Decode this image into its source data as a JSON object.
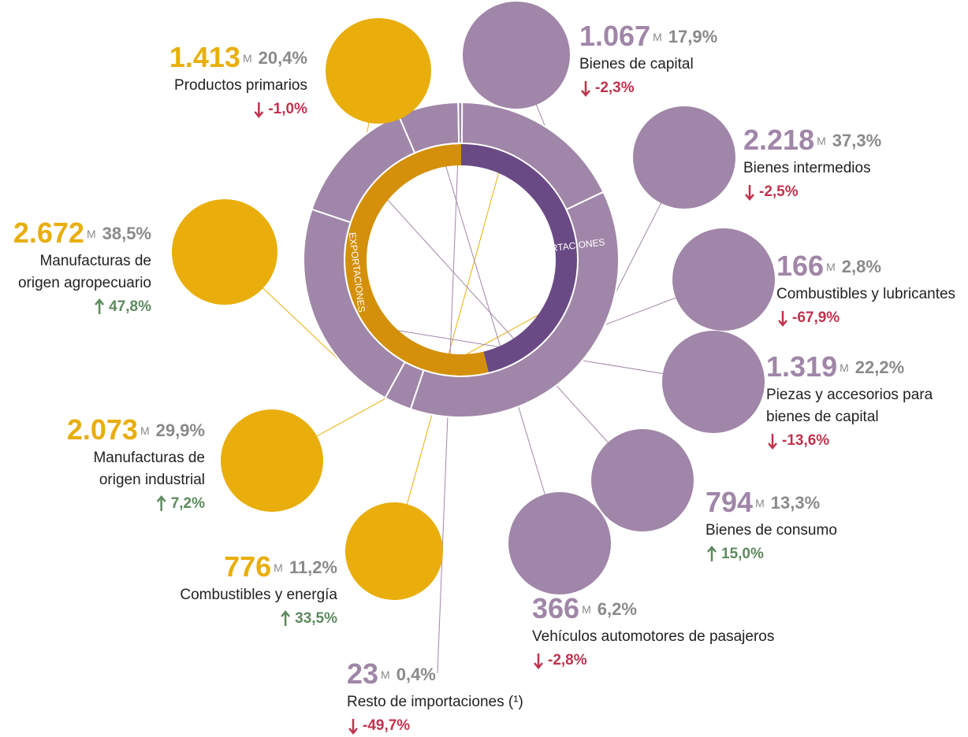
{
  "chart_data": {
    "type": "donut",
    "unit": "M",
    "colors": {
      "exports": "#e9ae0c",
      "exports_inner": "#d4900a",
      "imports": "#a086a8",
      "imports_inner": "#6a4a85",
      "down": "#c0334d",
      "up": "#5d8a5e"
    },
    "groups": [
      {
        "name": "EXPORTACIONES",
        "items": [
          {
            "name": [
              "Productos primarios"
            ],
            "value": 1413,
            "value_label": "1.413",
            "share": 20.4,
            "share_label": "20,4%",
            "change": -1.0,
            "change_label": "-1,0%"
          },
          {
            "name": [
              "Manufacturas de",
              "origen agropecuario"
            ],
            "value": 2672,
            "value_label": "2.672",
            "share": 38.5,
            "share_label": "38,5%",
            "change": 47.8,
            "change_label": "47,8%"
          },
          {
            "name": [
              "Manufacturas de",
              "origen industrial"
            ],
            "value": 2073,
            "value_label": "2.073",
            "share": 29.9,
            "share_label": "29,9%",
            "change": 7.2,
            "change_label": "7,2%"
          },
          {
            "name": [
              "Combustibles y energía"
            ],
            "value": 776,
            "value_label": "776",
            "share": 11.2,
            "share_label": "11,2%",
            "change": 33.5,
            "change_label": "33,5%"
          }
        ]
      },
      {
        "name": "IMPORTACIONES",
        "items": [
          {
            "name": [
              "Bienes de capital"
            ],
            "value": 1067,
            "value_label": "1.067",
            "share": 17.9,
            "share_label": "17,9%",
            "change": -2.3,
            "change_label": "-2,3%"
          },
          {
            "name": [
              "Bienes intermedios"
            ],
            "value": 2218,
            "value_label": "2.218",
            "share": 37.3,
            "share_label": "37,3%",
            "change": -2.5,
            "change_label": "-2,5%"
          },
          {
            "name": [
              "Combustibles y lubricantes"
            ],
            "value": 166,
            "value_label": "166",
            "share": 2.8,
            "share_label": "2,8%",
            "change": -67.9,
            "change_label": "-67,9%"
          },
          {
            "name": [
              "Piezas y accesorios para",
              "bienes de capital"
            ],
            "value": 1319,
            "value_label": "1.319",
            "share": 22.2,
            "share_label": "22,2%",
            "change": -13.6,
            "change_label": "-13,6%"
          },
          {
            "name": [
              "Bienes de consumo"
            ],
            "value": 794,
            "value_label": "794",
            "share": 13.3,
            "share_label": "13,3%",
            "change": 15.0,
            "change_label": "15,0%"
          },
          {
            "name": [
              "Vehículos automotores de pasajeros"
            ],
            "value": 366,
            "value_label": "366",
            "share": 6.2,
            "share_label": "6,2%",
            "change": -2.8,
            "change_label": "-2,8%"
          },
          {
            "name": [
              "Resto de importaciones (¹)"
            ],
            "value": 23,
            "value_label": "23",
            "share": 0.4,
            "share_label": "0,4%",
            "change": -49.7,
            "change_label": "-49,7%"
          }
        ]
      }
    ]
  }
}
